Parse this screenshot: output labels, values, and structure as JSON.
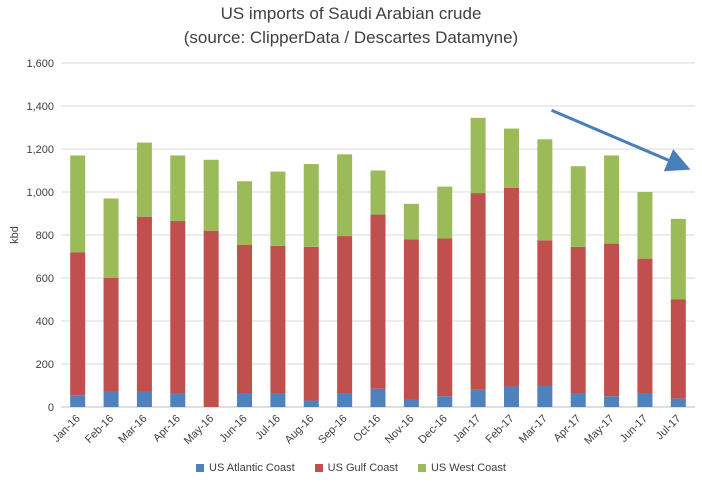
{
  "chart_data": {
    "type": "bar",
    "stacked": true,
    "title": "US imports of Saudi Arabian crude",
    "subtitle": "(source: ClipperData / Descartes Datamyne)",
    "xlabel": "",
    "ylabel": "kbd",
    "ylim": [
      0,
      1600
    ],
    "yticks": [
      "0",
      "200",
      "400",
      "600",
      "800",
      "1,000",
      "1,200",
      "1,400",
      "1,600"
    ],
    "grid": true,
    "legend_position": "bottom",
    "categories": [
      "Jan-16",
      "Feb-16",
      "Mar-16",
      "Apr-16",
      "May-16",
      "Jun-16",
      "Jul-16",
      "Aug-16",
      "Sep-16",
      "Oct-16",
      "Nov-16",
      "Dec-16",
      "Jan-17",
      "Feb-17",
      "Mar-17",
      "Apr-17",
      "May-17",
      "Jun-17",
      "Jul-17"
    ],
    "series": [
      {
        "name": "US Atlantic Coast",
        "color": "#4f81bd",
        "values": [
          55,
          70,
          70,
          65,
          0,
          65,
          65,
          30,
          65,
          85,
          35,
          50,
          80,
          95,
          100,
          65,
          50,
          65,
          40
        ]
      },
      {
        "name": "US Gulf Coast",
        "color": "#c0504d",
        "values": [
          665,
          530,
          815,
          800,
          820,
          690,
          685,
          715,
          730,
          810,
          745,
          735,
          915,
          925,
          675,
          680,
          710,
          625,
          460
        ]
      },
      {
        "name": "US West Coast",
        "color": "#9bbb59",
        "values": [
          450,
          370,
          345,
          305,
          330,
          295,
          345,
          385,
          380,
          205,
          165,
          240,
          350,
          275,
          470,
          375,
          410,
          310,
          375
        ]
      }
    ],
    "annotation": {
      "type": "arrow",
      "direction": "down-right",
      "color": "#4a7ebb",
      "from": [
        14.2,
        1380
      ],
      "to": [
        18.2,
        1115
      ]
    }
  }
}
